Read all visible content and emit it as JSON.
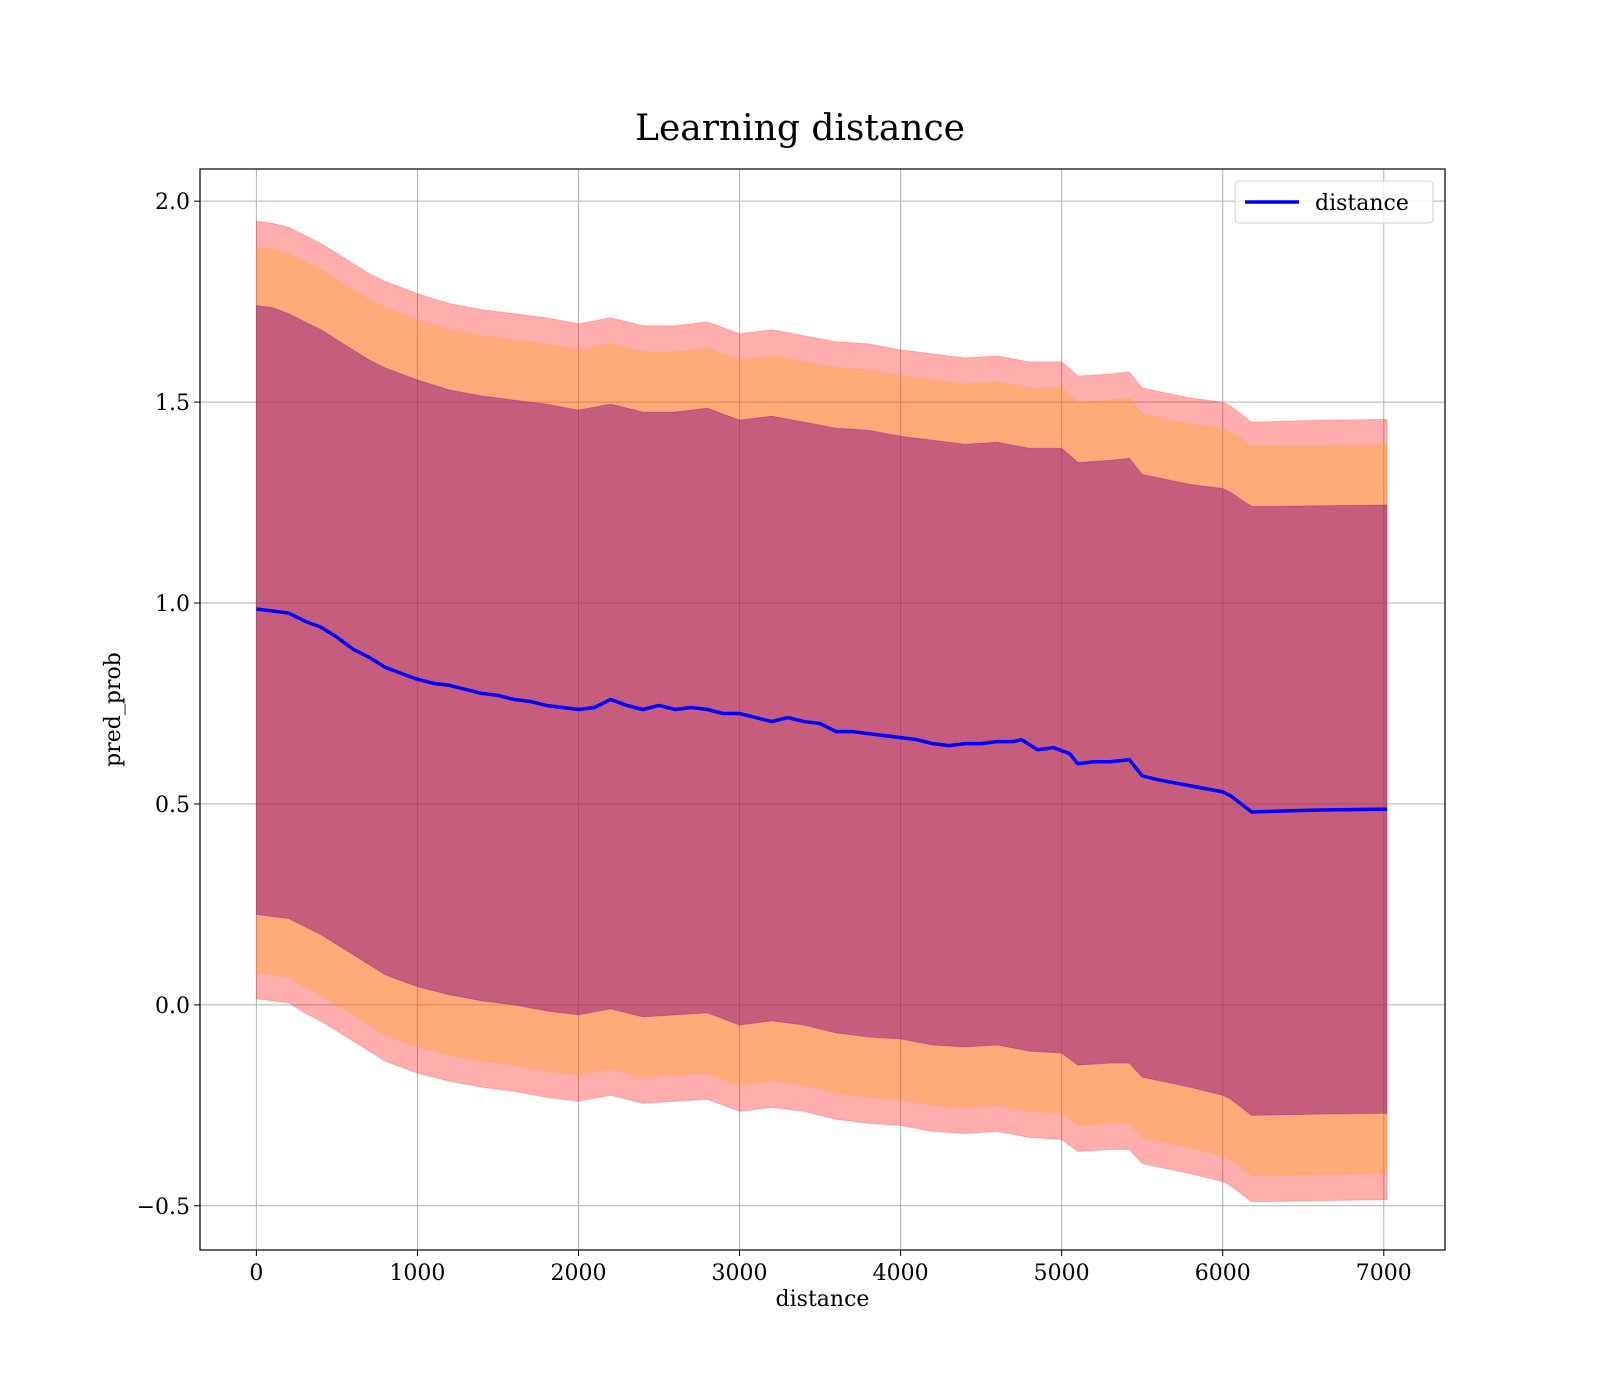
{
  "chart_data": {
    "type": "line",
    "title": "Learning distance",
    "xlabel": "distance",
    "ylabel": "pred_prob",
    "xlim": [
      -350,
      7380
    ],
    "ylim": [
      -0.61,
      2.08
    ],
    "xticks": [
      0,
      1000,
      2000,
      3000,
      4000,
      5000,
      6000,
      7000
    ],
    "yticks": [
      -0.5,
      0.0,
      0.5,
      1.0,
      1.5,
      2.0
    ],
    "xtick_labels": [
      "0",
      "1000",
      "2000",
      "3000",
      "4000",
      "5000",
      "6000",
      "7000"
    ],
    "ytick_labels": [
      "−0.5",
      "0.0",
      "0.5",
      "1.0",
      "1.5",
      "2.0"
    ],
    "grid": true,
    "legend_position": "top-right",
    "series": [
      {
        "name": "distance",
        "color": "#0000ff",
        "x": [
          0,
          100,
          200,
          300,
          400,
          500,
          600,
          700,
          800,
          900,
          1000,
          1100,
          1200,
          1300,
          1400,
          1500,
          1600,
          1700,
          1800,
          1900,
          2000,
          2100,
          2200,
          2300,
          2400,
          2500,
          2600,
          2700,
          2800,
          2900,
          3000,
          3100,
          3200,
          3300,
          3400,
          3500,
          3600,
          3700,
          3800,
          3900,
          4000,
          4100,
          4200,
          4300,
          4400,
          4500,
          4600,
          4700,
          4750,
          4850,
          4950,
          5050,
          5100,
          5200,
          5300,
          5420,
          5500,
          5600,
          5800,
          6000,
          6050,
          6180,
          6600,
          7020
        ],
        "y": [
          0.985,
          0.98,
          0.975,
          0.955,
          0.94,
          0.915,
          0.885,
          0.865,
          0.84,
          0.825,
          0.81,
          0.8,
          0.795,
          0.785,
          0.775,
          0.77,
          0.76,
          0.755,
          0.745,
          0.74,
          0.735,
          0.74,
          0.76,
          0.745,
          0.735,
          0.745,
          0.735,
          0.74,
          0.735,
          0.725,
          0.725,
          0.715,
          0.705,
          0.715,
          0.705,
          0.7,
          0.68,
          0.68,
          0.675,
          0.67,
          0.665,
          0.66,
          0.65,
          0.645,
          0.65,
          0.65,
          0.655,
          0.655,
          0.66,
          0.635,
          0.64,
          0.625,
          0.6,
          0.605,
          0.605,
          0.61,
          0.57,
          0.56,
          0.545,
          0.53,
          0.52,
          0.48,
          0.485,
          0.487
        ]
      }
    ],
    "bands": [
      {
        "name": "outer_band",
        "color": "#ff0000",
        "alpha": 0.32,
        "x": [
          0,
          100,
          200,
          300,
          400,
          500,
          600,
          700,
          800,
          900,
          1000,
          1200,
          1400,
          1600,
          1800,
          2000,
          2200,
          2400,
          2600,
          2800,
          3000,
          3200,
          3400,
          3600,
          3800,
          4000,
          4200,
          4400,
          4600,
          4800,
          5000,
          5100,
          5300,
          5420,
          5500,
          5800,
          6000,
          6050,
          6180,
          6600,
          7020
        ],
        "upper": [
          1.95,
          1.945,
          1.935,
          1.915,
          1.895,
          1.87,
          1.845,
          1.82,
          1.8,
          1.785,
          1.77,
          1.745,
          1.73,
          1.72,
          1.71,
          1.695,
          1.71,
          1.69,
          1.69,
          1.7,
          1.67,
          1.68,
          1.665,
          1.65,
          1.645,
          1.63,
          1.62,
          1.61,
          1.615,
          1.6,
          1.6,
          1.565,
          1.57,
          1.575,
          1.535,
          1.51,
          1.5,
          1.49,
          1.45,
          1.455,
          1.457
        ],
        "lower": [
          0.015,
          0.01,
          0.005,
          -0.02,
          -0.04,
          -0.065,
          -0.09,
          -0.115,
          -0.14,
          -0.155,
          -0.17,
          -0.19,
          -0.205,
          -0.215,
          -0.23,
          -0.24,
          -0.225,
          -0.245,
          -0.24,
          -0.235,
          -0.265,
          -0.255,
          -0.265,
          -0.285,
          -0.295,
          -0.3,
          -0.315,
          -0.32,
          -0.315,
          -0.33,
          -0.335,
          -0.365,
          -0.36,
          -0.36,
          -0.395,
          -0.42,
          -0.44,
          -0.45,
          -0.49,
          -0.487,
          -0.485
        ]
      },
      {
        "name": "middle_band",
        "color": "#ffa500",
        "alpha": 0.3,
        "x": [
          0,
          100,
          200,
          300,
          400,
          500,
          600,
          700,
          800,
          900,
          1000,
          1200,
          1400,
          1600,
          1800,
          2000,
          2200,
          2400,
          2600,
          2800,
          3000,
          3200,
          3400,
          3600,
          3800,
          4000,
          4200,
          4400,
          4600,
          4800,
          5000,
          5100,
          5300,
          5420,
          5500,
          5800,
          6000,
          6050,
          6180,
          6600,
          7020
        ],
        "upper": [
          1.885,
          1.88,
          1.87,
          1.85,
          1.83,
          1.805,
          1.78,
          1.755,
          1.735,
          1.72,
          1.705,
          1.68,
          1.665,
          1.655,
          1.645,
          1.63,
          1.645,
          1.625,
          1.625,
          1.635,
          1.605,
          1.615,
          1.6,
          1.585,
          1.58,
          1.565,
          1.555,
          1.545,
          1.55,
          1.535,
          1.535,
          1.5,
          1.505,
          1.51,
          1.47,
          1.445,
          1.435,
          1.425,
          1.39,
          1.392,
          1.394
        ],
        "lower": [
          0.08,
          0.075,
          0.07,
          0.045,
          0.025,
          0.0,
          -0.025,
          -0.05,
          -0.075,
          -0.09,
          -0.105,
          -0.125,
          -0.14,
          -0.15,
          -0.165,
          -0.175,
          -0.16,
          -0.18,
          -0.175,
          -0.17,
          -0.2,
          -0.19,
          -0.2,
          -0.22,
          -0.23,
          -0.235,
          -0.25,
          -0.255,
          -0.25,
          -0.265,
          -0.27,
          -0.3,
          -0.295,
          -0.295,
          -0.33,
          -0.355,
          -0.375,
          -0.385,
          -0.425,
          -0.422,
          -0.42
        ]
      },
      {
        "name": "inner_band",
        "color": "#800080",
        "alpha": 0.45,
        "x": [
          0,
          100,
          200,
          300,
          400,
          500,
          600,
          700,
          800,
          900,
          1000,
          1200,
          1400,
          1600,
          1800,
          2000,
          2200,
          2400,
          2600,
          2800,
          3000,
          3200,
          3400,
          3600,
          3800,
          4000,
          4200,
          4400,
          4600,
          4800,
          5000,
          5100,
          5300,
          5420,
          5500,
          5800,
          6000,
          6050,
          6180,
          6600,
          7020
        ],
        "upper": [
          1.74,
          1.735,
          1.72,
          1.7,
          1.68,
          1.655,
          1.63,
          1.605,
          1.585,
          1.57,
          1.555,
          1.53,
          1.515,
          1.505,
          1.495,
          1.48,
          1.495,
          1.475,
          1.475,
          1.485,
          1.455,
          1.465,
          1.45,
          1.435,
          1.43,
          1.415,
          1.405,
          1.395,
          1.4,
          1.385,
          1.385,
          1.35,
          1.355,
          1.36,
          1.32,
          1.295,
          1.285,
          1.275,
          1.24,
          1.242,
          1.244
        ],
        "lower": [
          0.225,
          0.22,
          0.215,
          0.195,
          0.175,
          0.15,
          0.125,
          0.1,
          0.075,
          0.06,
          0.045,
          0.025,
          0.01,
          0.0,
          -0.015,
          -0.025,
          -0.01,
          -0.03,
          -0.025,
          -0.02,
          -0.05,
          -0.04,
          -0.05,
          -0.07,
          -0.08,
          -0.085,
          -0.1,
          -0.105,
          -0.1,
          -0.115,
          -0.12,
          -0.15,
          -0.145,
          -0.145,
          -0.18,
          -0.205,
          -0.225,
          -0.235,
          -0.275,
          -0.272,
          -0.27
        ]
      }
    ]
  }
}
